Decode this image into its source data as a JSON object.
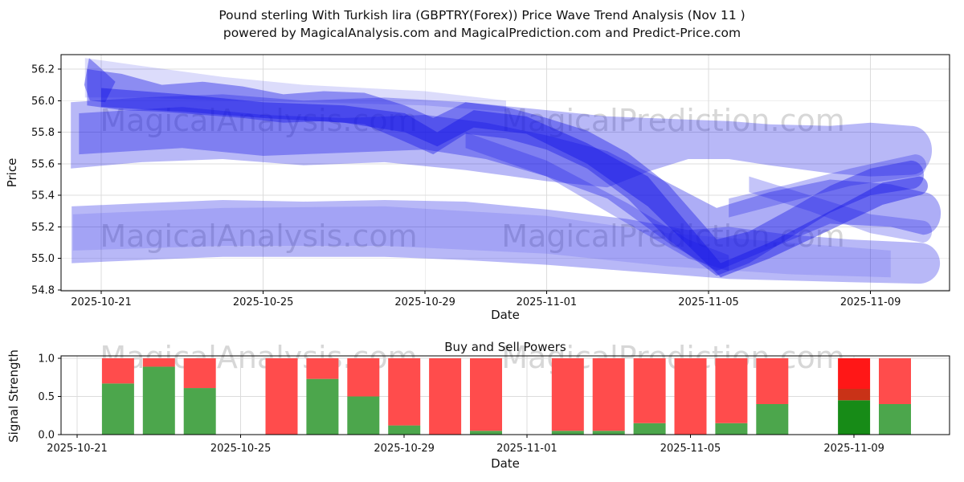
{
  "figure": {
    "title_line1": "Pound sterling With Turkish lira (GBPTRY(Forex)) Price Wave Trend Analysis (Nov 11 )",
    "title_line2": "powered by MagicalAnalysis.com and MagicalPrediction.com and Predict-Price.com"
  },
  "watermarks": {
    "left_text": "MagicalAnalysis.com",
    "right_text": "MagicalPrediction.com",
    "color": "#7a7a7a",
    "opacity": 0.3
  },
  "colors": {
    "band_blue": "#1414e6",
    "bar_red": "#ff4c4c",
    "bar_green": "#4ca64c",
    "overlap_red": "#ff1717",
    "overlap_dark_red": "#c93217",
    "overlap_dark_green": "#178b17",
    "grid": "#dcdcdc",
    "spine": "#000000",
    "text": "#111111"
  },
  "chart_data": [
    {
      "type": "area",
      "title": "",
      "xlabel": "Date",
      "ylabel": "Price",
      "ylim": [
        54.78,
        56.29
      ],
      "yticks": [
        "54.8",
        "55.0",
        "55.2",
        "55.4",
        "55.6",
        "55.8",
        "56.0",
        "56.2"
      ],
      "xticks": [
        {
          "label": "2025-10-21",
          "day": 0
        },
        {
          "label": "2025-10-25",
          "day": 4
        },
        {
          "label": "2025-10-29",
          "day": 8
        },
        {
          "label": "2025-11-01",
          "day": 11
        },
        {
          "label": "2025-11-05",
          "day": 15
        },
        {
          "label": "2025-11-09",
          "day": 19
        }
      ],
      "bands": [
        {
          "name": "fan-top",
          "opacity": 0.15,
          "cap": 0,
          "points": [
            [
              -0.4,
              56.27,
              56.02
            ],
            [
              1,
              56.22,
              56.02
            ],
            [
              3,
              56.15,
              56.0
            ],
            [
              5,
              56.1,
              55.99
            ],
            [
              8,
              56.06,
              55.97
            ],
            [
              10,
              56.0,
              55.93
            ]
          ]
        },
        {
          "name": "outer-envelope-upper",
          "opacity": 0.3,
          "cap": 26,
          "points": [
            [
              -0.75,
              55.99,
              55.57
            ],
            [
              1,
              56.02,
              55.61
            ],
            [
              3,
              56.04,
              55.63
            ],
            [
              5,
              56.0,
              55.59
            ],
            [
              7,
              56.02,
              55.61
            ],
            [
              9,
              55.99,
              55.56
            ],
            [
              11,
              55.94,
              55.49
            ],
            [
              12.5,
              55.9,
              55.45
            ],
            [
              13.5,
              55.89,
              55.55
            ],
            [
              14.5,
              55.88,
              55.63
            ],
            [
              15.5,
              55.87,
              55.63
            ],
            [
              16.5,
              55.85,
              55.59
            ],
            [
              18,
              55.84,
              55.54
            ],
            [
              19,
              55.86,
              55.52
            ],
            [
              20,
              55.84,
              55.53
            ]
          ]
        },
        {
          "name": "outer-envelope-lower",
          "opacity": 0.3,
          "cap": 26,
          "points": [
            [
              -0.73,
              55.33,
              54.97
            ],
            [
              1,
              55.35,
              54.99
            ],
            [
              3,
              55.37,
              55.01
            ],
            [
              5,
              55.36,
              55.01
            ],
            [
              7,
              55.37,
              55.01
            ],
            [
              9,
              55.36,
              54.99
            ],
            [
              11,
              55.31,
              54.96
            ],
            [
              13,
              55.25,
              54.92
            ],
            [
              14.5,
              55.18,
              54.89
            ],
            [
              15.5,
              55.2,
              54.87
            ],
            [
              17,
              55.15,
              54.86
            ],
            [
              18.5,
              55.12,
              54.85
            ],
            [
              20.2,
              55.1,
              54.84
            ]
          ]
        },
        {
          "name": "lower-core",
          "opacity": 0.12,
          "cap": 0,
          "points": [
            [
              -0.7,
              55.28,
              55.05
            ],
            [
              3,
              55.32,
              55.08
            ],
            [
              7,
              55.33,
              55.08
            ],
            [
              11,
              55.27,
              55.03
            ],
            [
              14,
              55.16,
              54.95
            ],
            [
              17,
              55.1,
              54.9
            ],
            [
              19.5,
              55.05,
              54.88
            ]
          ]
        },
        {
          "name": "middle-band",
          "opacity": 0.35,
          "cap": 22,
          "points": [
            [
              -0.55,
              55.92,
              55.66
            ],
            [
              2,
              55.96,
              55.7
            ],
            [
              4,
              55.91,
              55.65
            ],
            [
              6,
              55.89,
              55.67
            ],
            [
              8,
              55.91,
              55.69
            ],
            [
              9.5,
              55.86,
              55.63
            ],
            [
              11,
              55.78,
              55.52
            ],
            [
              12.5,
              55.68,
              55.38
            ],
            [
              14,
              55.48,
              55.1
            ],
            [
              15.2,
              55.32,
              54.92
            ],
            [
              16.5,
              55.42,
              55.06
            ],
            [
              18,
              55.5,
              55.22
            ],
            [
              19.5,
              55.47,
              55.2
            ],
            [
              20.3,
              55.42,
              55.15
            ]
          ]
        },
        {
          "name": "upper-dark-band",
          "opacity": 0.4,
          "cap": 16,
          "points": [
            [
              -0.35,
              56.2,
              55.97
            ],
            [
              0.5,
              56.17,
              55.94
            ],
            [
              1.5,
              56.1,
              55.93
            ],
            [
              2.5,
              56.12,
              55.91
            ],
            [
              3.5,
              56.09,
              55.89
            ],
            [
              4.5,
              56.04,
              55.86
            ],
            [
              5.5,
              56.06,
              55.87
            ],
            [
              6.5,
              56.05,
              55.85
            ],
            [
              7.5,
              55.97,
              55.74
            ],
            [
              8.2,
              55.89,
              55.66
            ],
            [
              9,
              55.99,
              55.79
            ],
            [
              10,
              55.96,
              55.76
            ],
            [
              11,
              55.89,
              55.69
            ],
            [
              12,
              55.81,
              55.57
            ],
            [
              13,
              55.67,
              55.38
            ],
            [
              14,
              55.47,
              55.12
            ],
            [
              15.2,
              55.12,
              54.89
            ],
            [
              16,
              55.17,
              54.97
            ],
            [
              17,
              55.31,
              55.13
            ],
            [
              18,
              55.46,
              55.29
            ],
            [
              19,
              55.57,
              55.4
            ],
            [
              20,
              55.62,
              55.44
            ]
          ]
        },
        {
          "name": "dark-core-streak",
          "opacity": 0.45,
          "cap": 12,
          "points": [
            [
              0,
              56.08,
              55.96
            ],
            [
              2,
              56.04,
              55.93
            ],
            [
              4,
              55.99,
              55.89
            ],
            [
              6,
              55.97,
              55.86
            ],
            [
              7.5,
              55.92,
              55.8
            ],
            [
              8.3,
              55.8,
              55.71
            ],
            [
              9.2,
              55.94,
              55.83
            ],
            [
              10.5,
              55.9,
              55.79
            ],
            [
              12,
              55.73,
              55.6
            ],
            [
              13.5,
              55.52,
              55.33
            ],
            [
              15.3,
              54.97,
              54.88
            ],
            [
              16.5,
              55.1,
              55.0
            ],
            [
              18,
              55.3,
              55.18
            ],
            [
              19.3,
              55.48,
              55.34
            ],
            [
              20.2,
              55.52,
              55.4
            ]
          ]
        },
        {
          "name": "crossing-streak-down",
          "opacity": 0.28,
          "cap": 0,
          "points": [
            [
              9,
              55.8,
              55.7
            ],
            [
              11,
              55.62,
              55.52
            ],
            [
              13,
              55.35,
              55.22
            ],
            [
              14.5,
              55.12,
              55.0
            ],
            [
              15.5,
              55.02,
              54.92
            ]
          ]
        },
        {
          "name": "crossing-streak-up",
          "opacity": 0.28,
          "cap": 14,
          "points": [
            [
              15.5,
              55.38,
              55.26
            ],
            [
              17,
              55.47,
              55.36
            ],
            [
              18.5,
              55.57,
              55.46
            ],
            [
              20.1,
              55.66,
              55.52
            ]
          ]
        },
        {
          "name": "crossing-streak-down2",
          "opacity": 0.25,
          "cap": 12,
          "points": [
            [
              16,
              55.52,
              55.42
            ],
            [
              17.5,
              55.4,
              55.3
            ],
            [
              19,
              55.28,
              55.16
            ],
            [
              20.3,
              55.24,
              55.1
            ]
          ]
        }
      ],
      "spike": {
        "opacity": 0.4,
        "points": [
          [
            -0.42,
            56.1
          ],
          [
            -0.3,
            56.27
          ],
          [
            -0.12,
            56.23
          ],
          [
            0.35,
            56.12
          ],
          [
            0.1,
            55.99
          ],
          [
            -0.28,
            56.0
          ]
        ]
      }
    },
    {
      "type": "bar",
      "title": "Buy and Sell Powers",
      "xlabel": "Date",
      "ylabel": "Signal Strength",
      "ylim": [
        0,
        1.03
      ],
      "yticks": [
        "0.0",
        "0.5",
        "1.0"
      ],
      "xticks": [
        {
          "label": "2025-10-21",
          "day": 0
        },
        {
          "label": "2025-10-25",
          "day": 4
        },
        {
          "label": "2025-10-29",
          "day": 8
        },
        {
          "label": "2025-11-01",
          "day": 11
        },
        {
          "label": "2025-11-05",
          "day": 15
        },
        {
          "label": "2025-11-09",
          "day": 19
        }
      ],
      "bars": [
        {
          "date": "2025-10-22",
          "day": 1,
          "buy": 0.67,
          "sell": 0.33
        },
        {
          "date": "2025-10-23",
          "day": 2,
          "buy": 0.89,
          "sell": 0.11
        },
        {
          "date": "2025-10-24",
          "day": 3,
          "buy": 0.61,
          "sell": 0.39
        },
        {
          "date": "2025-10-26",
          "day": 5,
          "buy": 0.0,
          "sell": 1.0
        },
        {
          "date": "2025-10-27",
          "day": 6,
          "buy": 0.73,
          "sell": 0.27
        },
        {
          "date": "2025-10-28",
          "day": 7,
          "buy": 0.5,
          "sell": 0.5
        },
        {
          "date": "2025-10-29",
          "day": 8,
          "buy": 0.12,
          "sell": 0.88
        },
        {
          "date": "2025-10-30",
          "day": 9,
          "buy": 0.0,
          "sell": 1.0
        },
        {
          "date": "2025-10-31",
          "day": 10,
          "buy": 0.05,
          "sell": 0.95
        },
        {
          "date": "2025-11-02",
          "day": 12,
          "buy": 0.05,
          "sell": 0.95
        },
        {
          "date": "2025-11-03",
          "day": 13,
          "buy": 0.05,
          "sell": 0.95
        },
        {
          "date": "2025-11-04",
          "day": 14,
          "buy": 0.15,
          "sell": 0.85
        },
        {
          "date": "2025-11-05",
          "day": 15,
          "buy": 0.0,
          "sell": 1.0
        },
        {
          "date": "2025-11-06",
          "day": 16,
          "buy": 0.15,
          "sell": 0.85
        },
        {
          "date": "2025-11-07",
          "day": 17,
          "buy": 0.4,
          "sell": 0.6
        },
        {
          "date": "2025-11-09",
          "day": 19,
          "buy": 0.45,
          "buy_secondary": 0.6,
          "sell": 0.4
        },
        {
          "date": "2025-11-10",
          "day": 20,
          "buy": 0.4,
          "sell": 0.6
        }
      ]
    }
  ]
}
